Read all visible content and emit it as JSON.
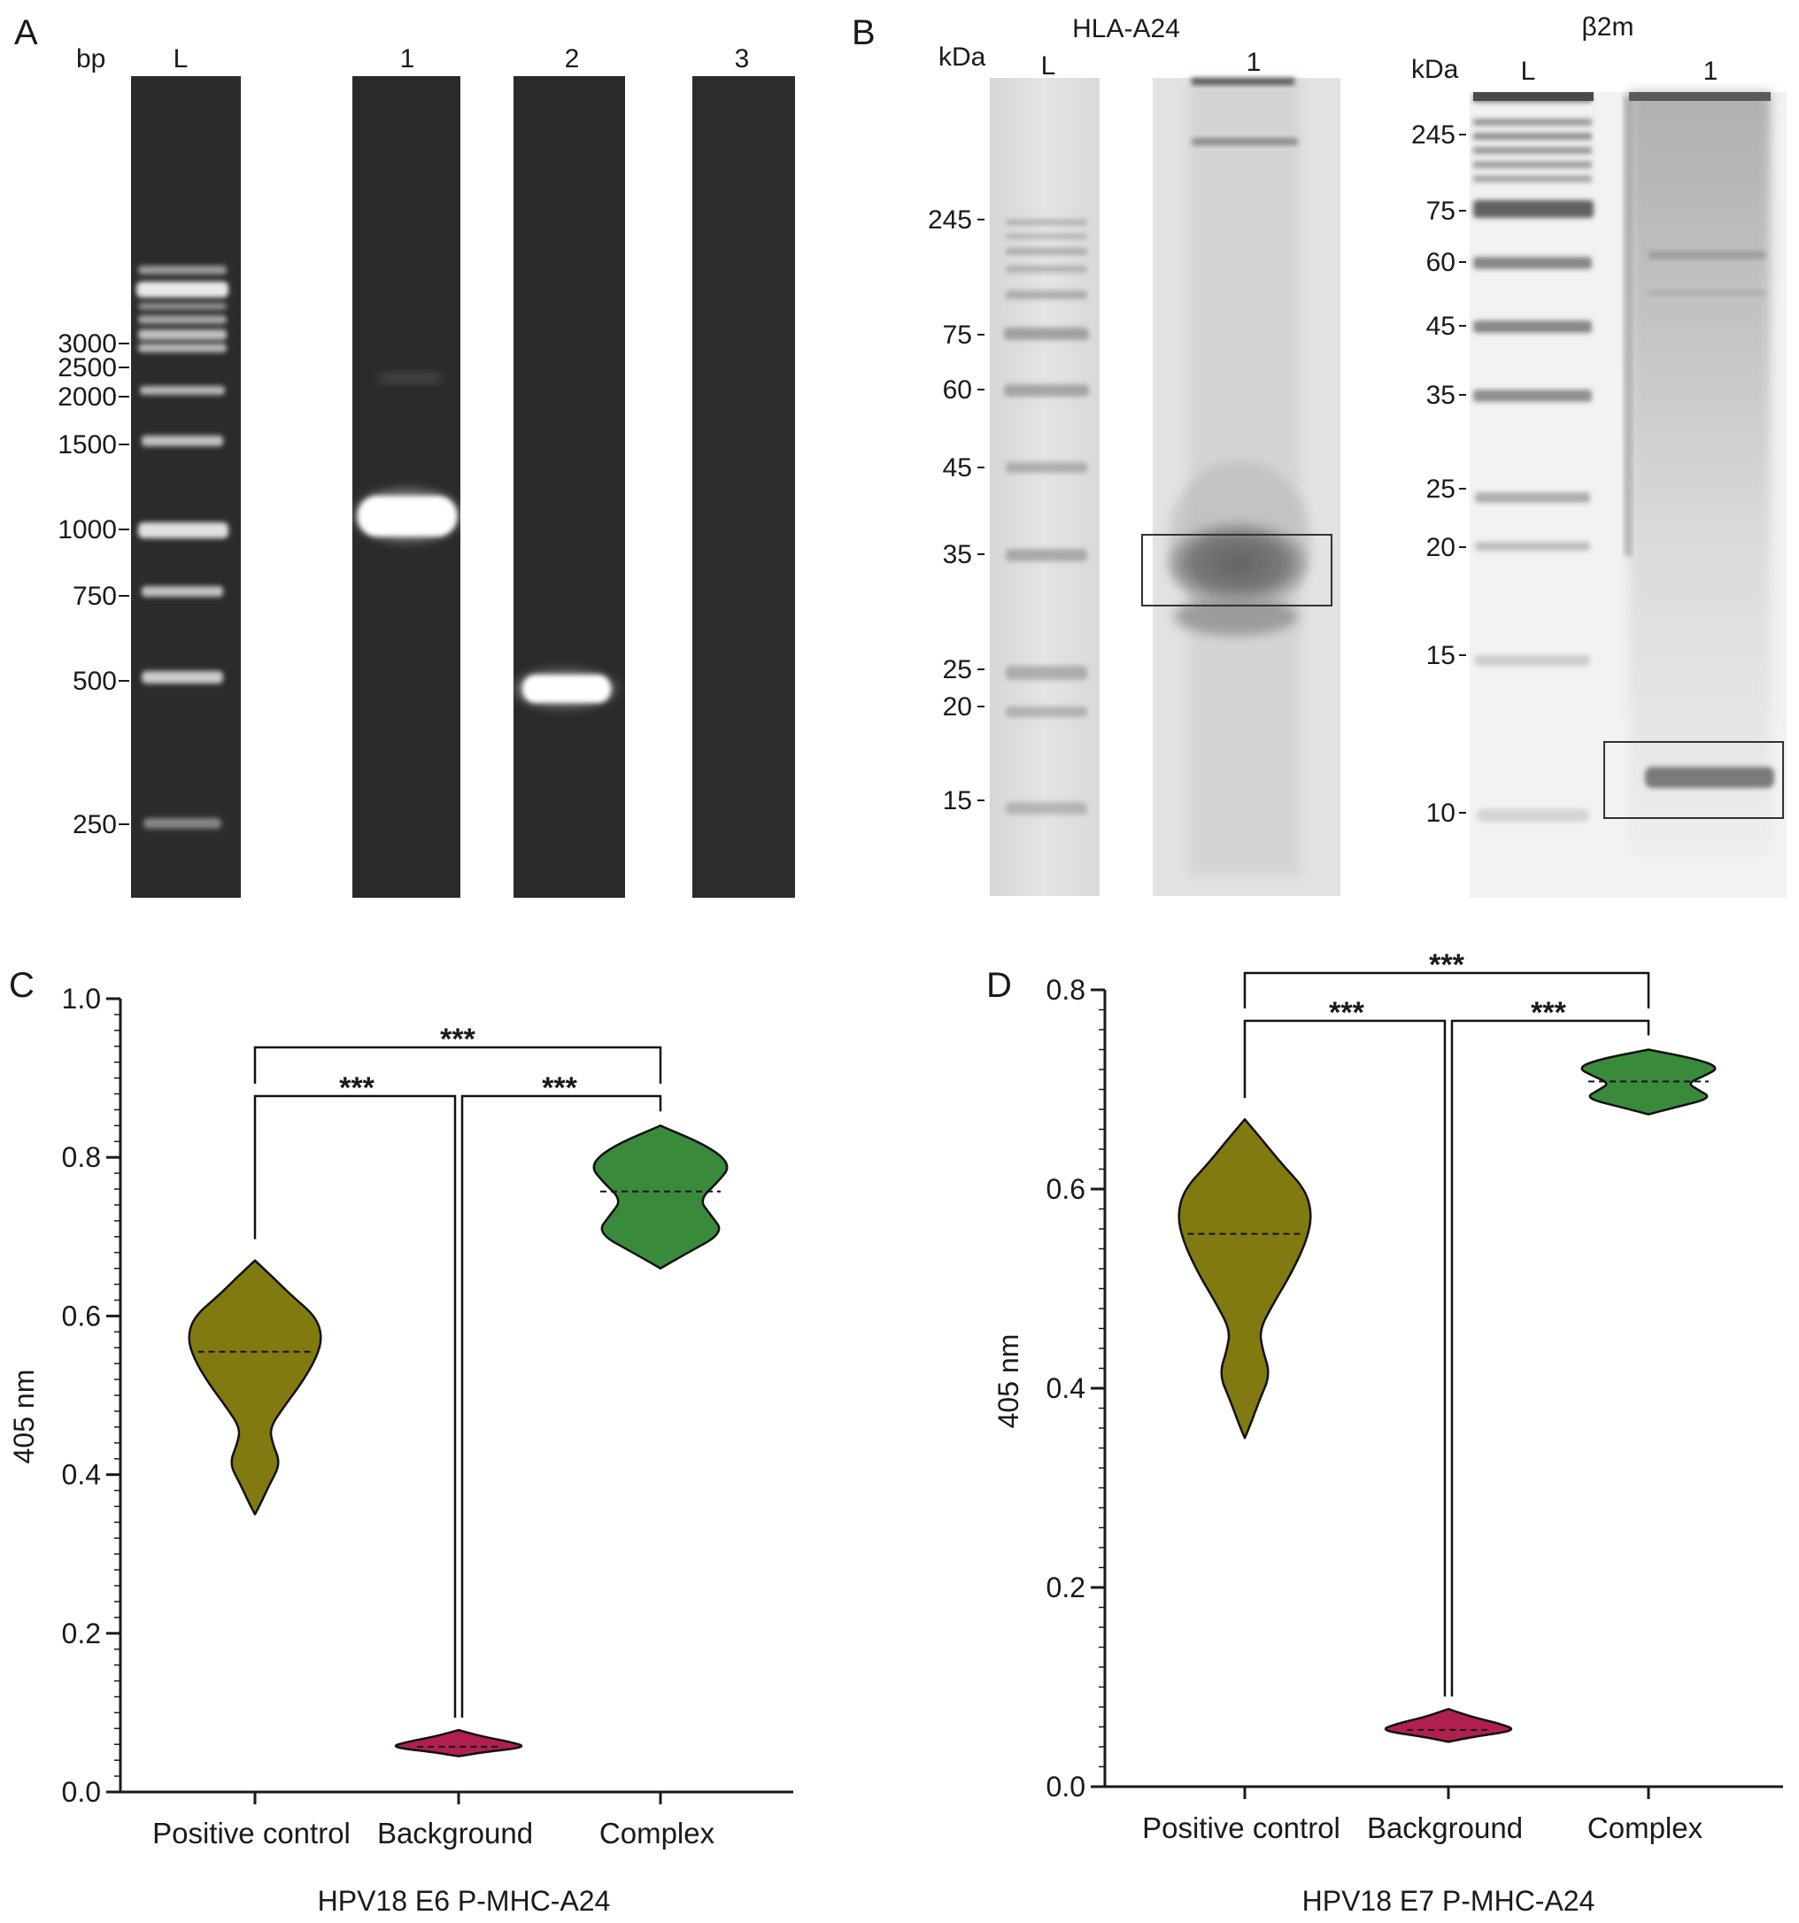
{
  "panelA": {
    "letter": "A",
    "unit": "bp",
    "lane_labels": [
      "L",
      "1",
      "2",
      "3"
    ],
    "marker_labels": [
      "3000",
      "2500",
      "2000",
      "1500",
      "1000",
      "750",
      "500",
      "250"
    ],
    "marker_values": [
      3000,
      2500,
      2000,
      1500,
      1000,
      750,
      500,
      250
    ]
  },
  "panelB": {
    "letter": "B",
    "gel1": {
      "title": "HLA-A24",
      "unit": "kDa",
      "lane_labels": [
        "L",
        "1"
      ],
      "marker_labels": [
        "245",
        "75",
        "60",
        "45",
        "35",
        "25",
        "20",
        "15"
      ]
    },
    "gel2": {
      "title": "β2m",
      "unit": "kDa",
      "lane_labels": [
        "L",
        "1"
      ],
      "marker_labels": [
        "245",
        "75",
        "60",
        "45",
        "35",
        "25",
        "20",
        "15",
        "10"
      ]
    }
  },
  "chart_data": [
    {
      "panel": "C",
      "type": "violin",
      "xlabel": "HPV18 E6 P-MHC-A24",
      "ylabel": "405 nm",
      "ylim": [
        0,
        1.0
      ],
      "yticks": [
        "0.0",
        "0.2",
        "0.4",
        "0.6",
        "0.8",
        "1.0"
      ],
      "categories": [
        "Positive control",
        "Background",
        "Complex"
      ],
      "colors": [
        "#807a10",
        "#b0204e",
        "#3a8a3c"
      ],
      "medians": [
        0.555,
        0.057,
        0.757
      ],
      "ranges": [
        [
          0.35,
          0.67
        ],
        [
          0.045,
          0.078
        ],
        [
          0.66,
          0.84
        ]
      ],
      "significance": [
        {
          "pair": [
            "Positive control",
            "Complex"
          ],
          "label": "***"
        },
        {
          "pair": [
            "Positive control",
            "Background"
          ],
          "label": "***"
        },
        {
          "pair": [
            "Background",
            "Complex"
          ],
          "label": "***"
        }
      ]
    },
    {
      "panel": "D",
      "type": "violin",
      "xlabel": "HPV18 E7 P-MHC-A24",
      "ylabel": "405 nm",
      "ylim": [
        0,
        0.8
      ],
      "yticks": [
        "0.0",
        "0.2",
        "0.4",
        "0.6",
        "0.8"
      ],
      "categories": [
        "Positive control",
        "Background",
        "Complex"
      ],
      "colors": [
        "#807a10",
        "#b0204e",
        "#3a8a3c"
      ],
      "medians": [
        0.555,
        0.057,
        0.708
      ],
      "ranges": [
        [
          0.35,
          0.67
        ],
        [
          0.045,
          0.078
        ],
        [
          0.675,
          0.74
        ]
      ],
      "significance": [
        {
          "pair": [
            "Positive control",
            "Complex"
          ],
          "label": "***"
        },
        {
          "pair": [
            "Positive control",
            "Background"
          ],
          "label": "***"
        },
        {
          "pair": [
            "Background",
            "Complex"
          ],
          "label": "***"
        }
      ]
    }
  ]
}
